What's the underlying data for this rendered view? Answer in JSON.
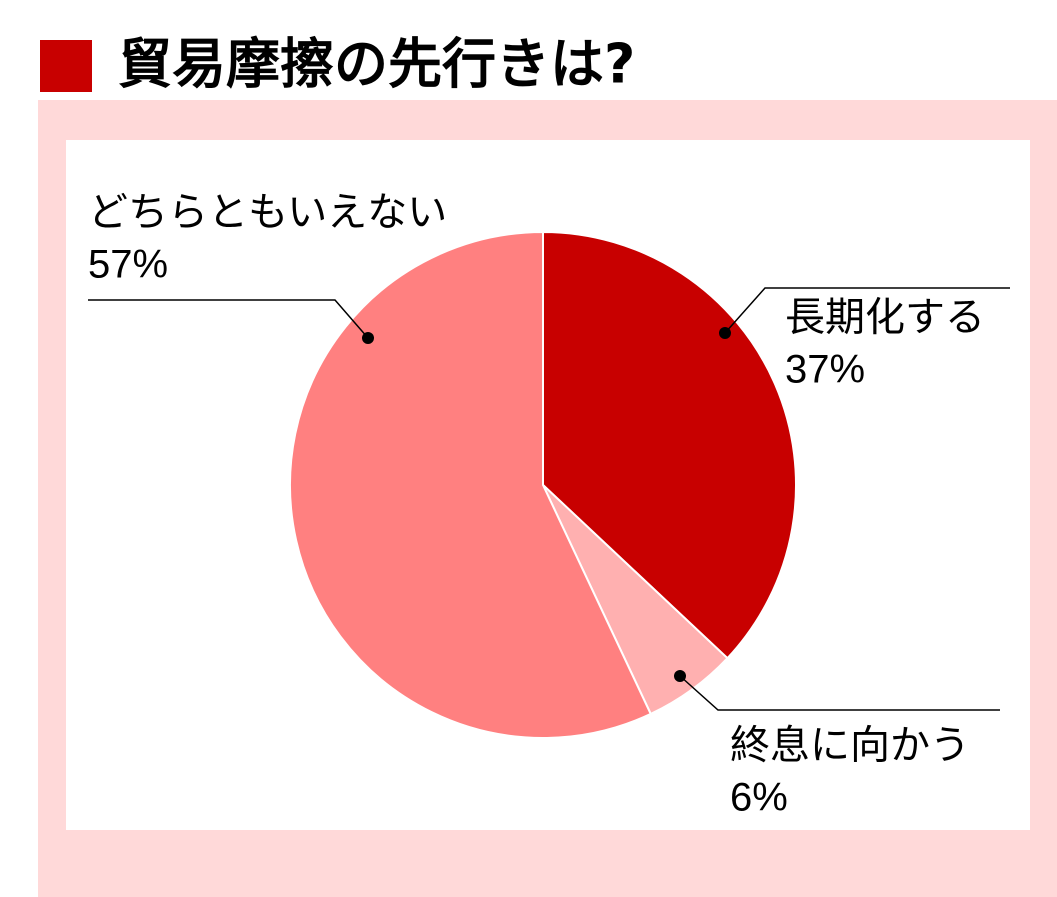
{
  "chart_data": {
    "type": "pie",
    "title": "貿易摩擦の先行きは?",
    "categories": [
      "長期化する",
      "終息に向かう",
      "どちらともいえない"
    ],
    "values": [
      37,
      6,
      57
    ],
    "value_labels": [
      "37%",
      "6%",
      "57%"
    ],
    "colors": [
      "#c80000",
      "#ffb0b0",
      "#ff8080"
    ]
  }
}
